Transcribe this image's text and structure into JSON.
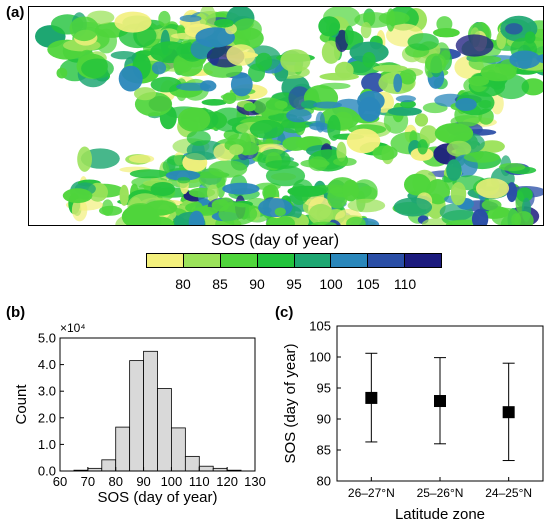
{
  "panels": {
    "a": "(a)",
    "b": "(b)",
    "c": "(c)"
  },
  "legend": {
    "title": "SOS (day of year)",
    "colors": [
      "#f3f07d",
      "#9be25a",
      "#4fd53b",
      "#22c33c",
      "#1ea772",
      "#2a87bb",
      "#2a4ea6",
      "#1c1b7e"
    ],
    "ticks": [
      "80",
      "85",
      "90",
      "95",
      "100",
      "105",
      "110"
    ]
  },
  "map": {
    "no_data_color": "#ffffff",
    "palette": [
      "#f3f07d",
      "#9be25a",
      "#4fd53b",
      "#22c33c",
      "#1ea772",
      "#2a87bb",
      "#2a4ea6",
      "#1c1b7e"
    ]
  },
  "chart_data": [
    {
      "panel": "b",
      "type": "bar",
      "title": "",
      "xlabel": "SOS (day of year)",
      "ylabel": "Count",
      "y_multiplier_label": "×10⁴",
      "bin_width": 5,
      "bin_starts": [
        65,
        70,
        75,
        80,
        85,
        90,
        95,
        100,
        105,
        110,
        115,
        120
      ],
      "values": [
        0.03,
        0.1,
        0.42,
        1.65,
        4.15,
        4.5,
        3.1,
        1.62,
        0.55,
        0.18,
        0.1,
        0.03
      ],
      "xlim": [
        60,
        130
      ],
      "x_ticks": [
        "60",
        "70",
        "80",
        "90",
        "100",
        "110",
        "120",
        "130"
      ],
      "ylim": [
        0,
        5
      ],
      "y_ticks": [
        "0.0",
        "1.0",
        "2.0",
        "3.0",
        "4.0",
        "5.0"
      ],
      "bar_color": "#d9d9d9"
    },
    {
      "panel": "c",
      "type": "scatter",
      "title": "",
      "xlabel": "Latitude zone",
      "ylabel": "SOS (day of year)",
      "categories": [
        "26–27°N",
        "25–26°N",
        "24–25°N"
      ],
      "mean": [
        93.4,
        92.9,
        91.1
      ],
      "upper": [
        100.6,
        99.9,
        99.0
      ],
      "lower": [
        86.3,
        86.0,
        83.3
      ],
      "ylim": [
        80,
        105
      ],
      "y_ticks": [
        "80",
        "85",
        "90",
        "95",
        "100",
        "105"
      ]
    }
  ]
}
